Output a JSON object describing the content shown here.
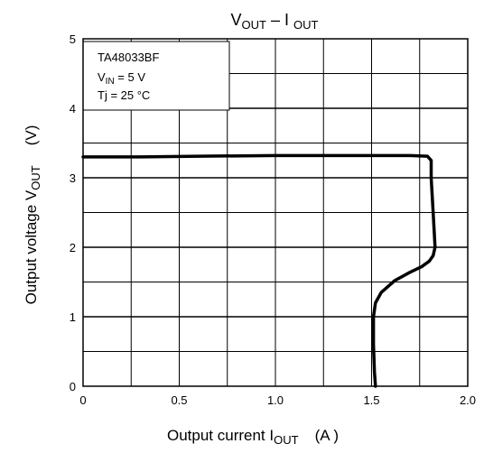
{
  "chart_data": {
    "type": "line",
    "title": {
      "main": "V",
      "sub1": "OUT",
      "dash": " – I ",
      "sub2": "OUT"
    },
    "xlabel": {
      "main": "Output current   I",
      "sub": "OUT",
      "unit": "(A )"
    },
    "ylabel": {
      "main": "Output voltage   V",
      "sub": "OUT",
      "unit": "(V)"
    },
    "xlim": [
      0,
      2.0
    ],
    "ylim": [
      0,
      5
    ],
    "x_tick_labels": [
      {
        "value": 0,
        "label": "0"
      },
      {
        "value": 0.5,
        "label": "0.5"
      },
      {
        "value": 1.0,
        "label": "1.0"
      },
      {
        "value": 1.5,
        "label": "1.5"
      },
      {
        "value": 2.0,
        "label": "2.0"
      }
    ],
    "y_tick_labels": [
      {
        "value": 0,
        "label": "0"
      },
      {
        "value": 1,
        "label": "1"
      },
      {
        "value": 2,
        "label": "2"
      },
      {
        "value": 3,
        "label": "3"
      },
      {
        "value": 4,
        "label": "4"
      },
      {
        "value": 5,
        "label": "5"
      }
    ],
    "x_minor_step": 0.25,
    "y_minor_step": 0.5,
    "grid": true,
    "annotation": {
      "line1": "TA48033BF",
      "line2": {
        "main": "V",
        "sub": "IN",
        "rest": " = 5 V"
      },
      "line3": "Tj = 25 °C"
    },
    "series": [
      {
        "x": [
          0,
          0.3,
          0.6,
          1.0,
          1.4,
          1.7,
          1.79,
          1.81,
          1.81,
          1.82,
          1.83,
          1.82,
          1.8,
          1.76,
          1.7,
          1.62,
          1.55,
          1.52,
          1.51,
          1.51,
          1.515,
          1.52
        ],
        "y": [
          3.3,
          3.3,
          3.31,
          3.32,
          3.32,
          3.32,
          3.31,
          3.25,
          3.0,
          2.5,
          2.0,
          1.88,
          1.8,
          1.72,
          1.64,
          1.52,
          1.35,
          1.2,
          1.0,
          0.6,
          0.2,
          0.0
        ]
      }
    ]
  },
  "style": {
    "line_color": "#000000",
    "grid_color": "#000000"
  }
}
